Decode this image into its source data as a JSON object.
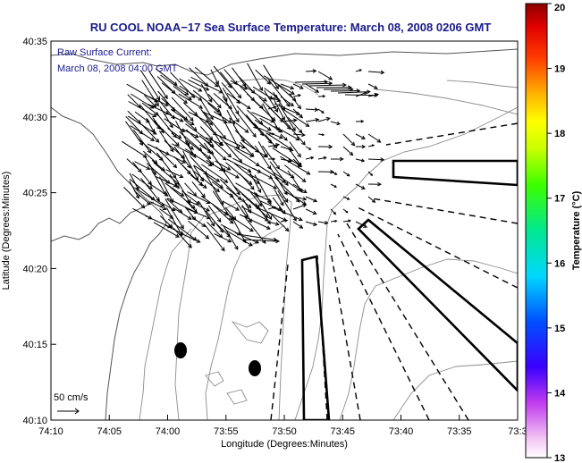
{
  "chart_data": {
    "type": "vector-field",
    "title": "RU COOL  NOAA−17  Sea Surface Temperature:  March 08, 2008 0206 GMT",
    "annotation_lines": [
      "Raw Surface Current:",
      "March 08, 2008 04:00 GMT"
    ],
    "xlabel": "Longitude (Degrees:Minutes)",
    "ylabel": "Latitude (Degrees:Minutes)",
    "x_tick_labels": [
      "74:10",
      "74:05",
      "74:00",
      "73:55",
      "73:50",
      "73:45",
      "73:40",
      "73:35",
      "73:3"
    ],
    "y_tick_labels": [
      "40:35",
      "40:30",
      "40:25",
      "40:20",
      "40:15",
      "40:10"
    ],
    "scale_label": "50 cm/s",
    "colorbar": {
      "label": "Temperature (°C)",
      "tick_labels": [
        "20",
        "19",
        "18",
        "17",
        "16",
        "15",
        "14",
        "13"
      ],
      "range": [
        13,
        20
      ]
    },
    "colors": {
      "title": "#1a1a8c",
      "annotation": "#1a1a8c",
      "axis": "#000000",
      "contour": "#8c8c8c",
      "coast": "#555555"
    }
  }
}
